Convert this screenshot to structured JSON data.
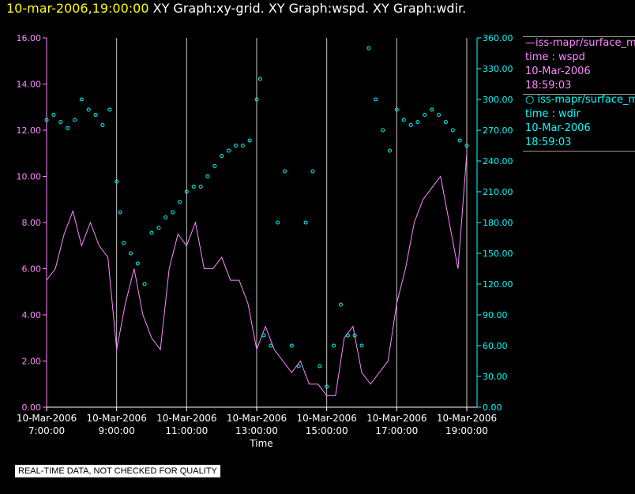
{
  "header": {
    "timestamp": "10-mar-2006,19:00:00",
    "graphs": "XY Graph:xy-grid.  XY Graph:wspd.  XY Graph:wdir."
  },
  "legend": {
    "series1_line": "—iss-mapr/surface_m",
    "series1_var": "time : wspd",
    "series1_date": "10-Mar-2006",
    "series1_time": "18:59:03",
    "series2_line": "○ iss-mapr/surface_m",
    "series2_var": "time : wdir",
    "series2_date": "10-Mar-2006",
    "series2_time": "18:59:03"
  },
  "footer": {
    "quality_note": "REAL-TIME DATA, NOT CHECKED FOR QUALITY"
  },
  "colors": {
    "wspd": "#ff88ff",
    "wdir": "#00ffff",
    "left_axis": "#ff88ff",
    "right_axis": "#00ffff",
    "grid": "#c8c8c8"
  },
  "chart_data": {
    "type": "line",
    "xlabel": "Time",
    "xlim": [
      "2006-03-10 07:00",
      "2006-03-10 19:00"
    ],
    "x_ticks": [
      {
        "date": "10-Mar-2006",
        "time": "7:00:00",
        "hour": 7
      },
      {
        "date": "10-Mar-2006",
        "time": "9:00:00",
        "hour": 9
      },
      {
        "date": "10-Mar-2006",
        "time": "11:00:00",
        "hour": 11
      },
      {
        "date": "10-Mar-2006",
        "time": "13:00:00",
        "hour": 13
      },
      {
        "date": "10-Mar-2006",
        "time": "15:00:00",
        "hour": 15
      },
      {
        "date": "10-Mar-2006",
        "time": "17:00:00",
        "hour": 17
      },
      {
        "date": "10-Mar-2006",
        "time": "19:00:00",
        "hour": 19
      }
    ],
    "y_left": {
      "ylim": [
        0,
        16
      ],
      "ticks": [
        "0.00",
        "2.00",
        "4.00",
        "6.00",
        "8.00",
        "10.00",
        "12.00",
        "14.00",
        "16.00"
      ]
    },
    "y_right": {
      "ylim": [
        0,
        360
      ],
      "ticks": [
        "0.00",
        "30.00",
        "60.00",
        "90.00",
        "120.00",
        "150.00",
        "180.00",
        "210.00",
        "240.00",
        "270.00",
        "300.00",
        "330.00",
        "360.00"
      ]
    },
    "grid_hours": [
      9,
      11,
      13,
      15,
      17,
      19
    ],
    "series": [
      {
        "name": "iss-mapr/surface_m time : wspd",
        "axis": "left",
        "style": "line",
        "x_hours": [
          7.0,
          7.25,
          7.5,
          7.75,
          8.0,
          8.25,
          8.5,
          8.75,
          9.0,
          9.25,
          9.5,
          9.75,
          10.0,
          10.25,
          10.5,
          10.75,
          11.0,
          11.25,
          11.5,
          11.75,
          12.0,
          12.25,
          12.5,
          12.75,
          13.0,
          13.25,
          13.5,
          13.75,
          14.0,
          14.25,
          14.5,
          14.75,
          15.0,
          15.25,
          15.5,
          15.75,
          16.0,
          16.25,
          16.5,
          16.75,
          17.0,
          17.25,
          17.5,
          17.75,
          18.0,
          18.25,
          18.5,
          18.75,
          19.0
        ],
        "values": [
          5.5,
          6.0,
          7.5,
          8.5,
          7.0,
          8.0,
          7.0,
          6.5,
          2.5,
          4.5,
          6.0,
          4.0,
          3.0,
          2.5,
          6.0,
          7.5,
          7.0,
          8.0,
          6.0,
          6.0,
          6.5,
          5.5,
          5.5,
          4.5,
          2.5,
          3.5,
          2.5,
          2.0,
          1.5,
          2.0,
          1.0,
          1.0,
          0.5,
          0.5,
          3.0,
          3.5,
          1.5,
          1.0,
          1.5,
          2.0,
          4.5,
          6.0,
          8.0,
          9.0,
          9.5,
          10.0,
          8.0,
          6.0,
          11.0
        ]
      },
      {
        "name": "iss-mapr/surface_m time : wdir",
        "axis": "right",
        "style": "markers",
        "x_hours": [
          7.0,
          7.2,
          7.4,
          7.6,
          7.8,
          8.0,
          8.2,
          8.4,
          8.6,
          8.8,
          9.0,
          9.1,
          9.2,
          9.4,
          9.6,
          9.8,
          10.0,
          10.2,
          10.4,
          10.6,
          10.8,
          11.0,
          11.2,
          11.4,
          11.6,
          11.8,
          12.0,
          12.2,
          12.4,
          12.6,
          12.8,
          13.0,
          13.1,
          13.2,
          13.4,
          13.6,
          13.8,
          14.0,
          14.2,
          14.4,
          14.6,
          14.8,
          15.0,
          15.2,
          15.4,
          15.6,
          15.8,
          16.0,
          16.2,
          16.4,
          16.6,
          16.8,
          17.0,
          17.2,
          17.4,
          17.6,
          17.8,
          18.0,
          18.2,
          18.4,
          18.6,
          18.8,
          19.0
        ],
        "values": [
          280,
          285,
          278,
          272,
          280,
          300,
          290,
          285,
          275,
          290,
          220,
          190,
          160,
          150,
          140,
          120,
          170,
          175,
          185,
          190,
          200,
          210,
          215,
          215,
          225,
          235,
          245,
          250,
          255,
          255,
          260,
          300,
          320,
          70,
          60,
          180,
          230,
          60,
          40,
          180,
          230,
          40,
          20,
          60,
          100,
          70,
          70,
          60,
          350,
          300,
          270,
          250,
          290,
          280,
          275,
          278,
          285,
          290,
          285,
          278,
          270,
          260,
          255
        ]
      }
    ]
  }
}
